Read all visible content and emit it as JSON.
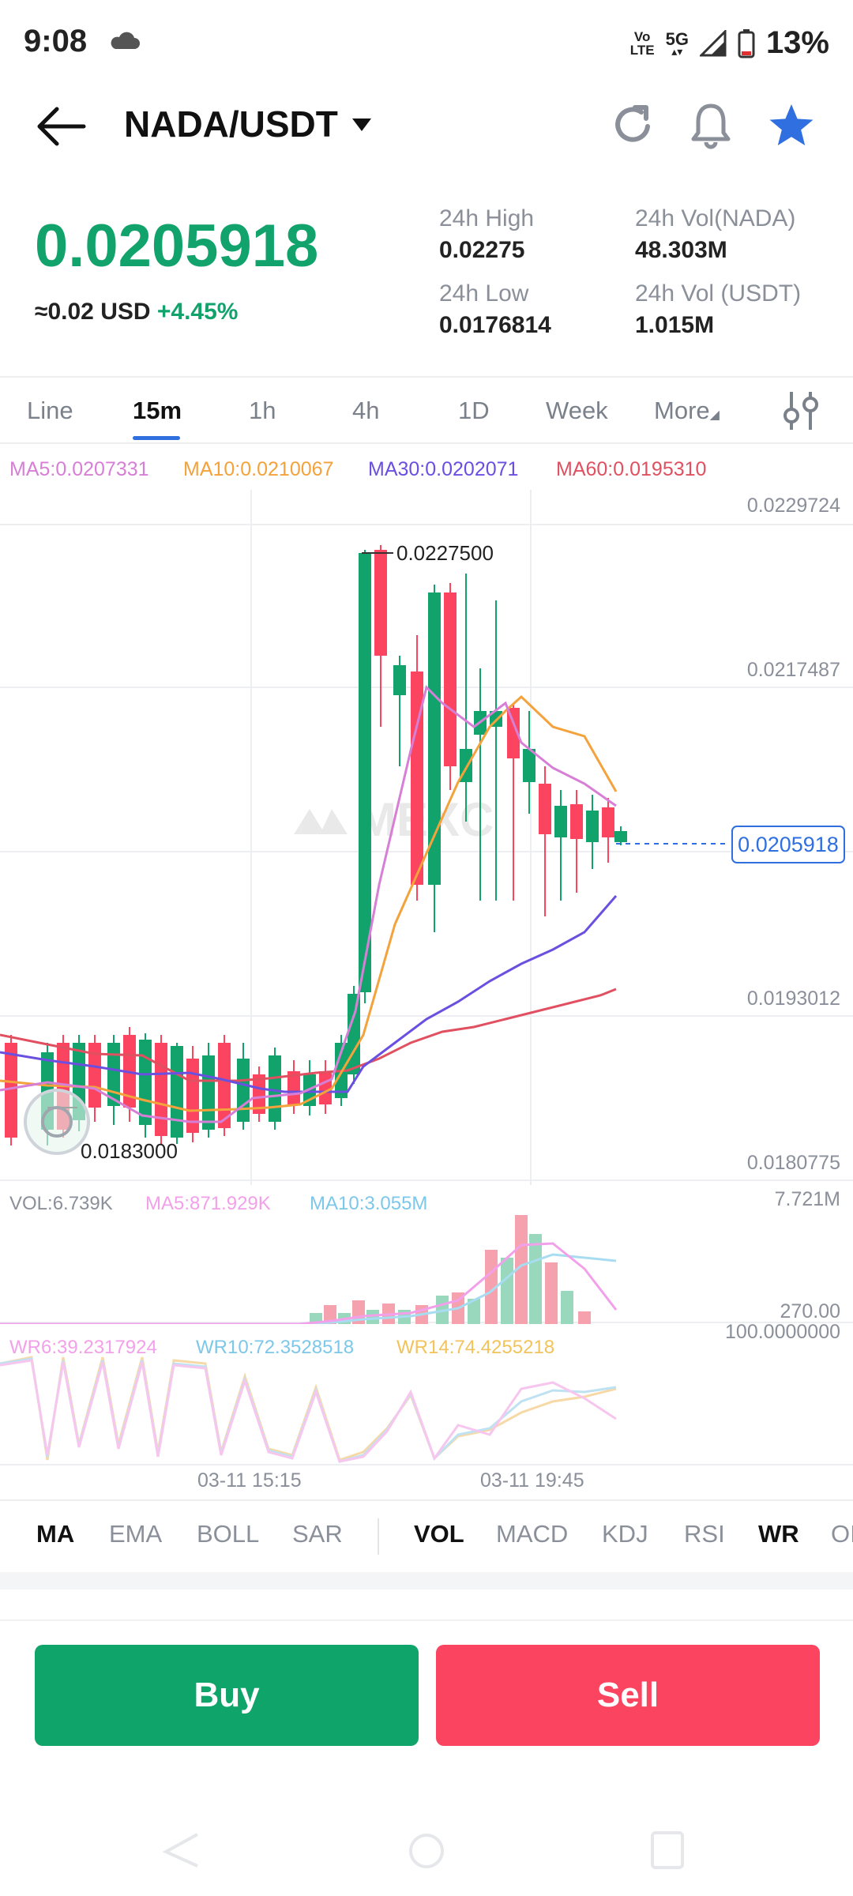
{
  "status_bar": {
    "time": "9:08",
    "volte_line1": "Vo",
    "volte_line2": "LTE",
    "network": "5G",
    "battery": "13%"
  },
  "header": {
    "pair": "NADA/USDT",
    "icons": [
      "back-arrow-icon",
      "dropdown-icon",
      "refresh-icon",
      "bell-icon",
      "star-icon"
    ]
  },
  "price": {
    "last": "0.0205918",
    "usd": "≈0.02 USD",
    "change": "+4.45%"
  },
  "stats": {
    "high_label": "24h High",
    "high_value": "0.02275",
    "low_label": "24h Low",
    "low_value": "0.0176814",
    "vol_nada_label": "24h Vol(NADA)",
    "vol_nada_value": "48.303M",
    "vol_usdt_label": "24h Vol (USDT)",
    "vol_usdt_value": "1.015M"
  },
  "tabs": [
    "Line",
    "15m",
    "1h",
    "4h",
    "1D",
    "Week",
    "More"
  ],
  "active_tab": "15m",
  "chart": {
    "ma5": "MA5:0.0207331",
    "ma10": "MA10:0.0210067",
    "ma30": "MA30:0.0202071",
    "ma60": "MA60:0.0195310",
    "axis": [
      "0.0229724",
      "0.0217487",
      "0.0193012",
      "0.0180775"
    ],
    "current_price_tag": "0.0205918",
    "high_marker": "0.0227500",
    "low_marker": "0.0183000",
    "watermark": "MEXC",
    "colors": {
      "up": "#12a36d",
      "down": "#fb4460",
      "ma5": "#d77fd6",
      "ma10": "#f4a23c",
      "ma30": "#6a4fe0",
      "ma60": "#e05060"
    }
  },
  "volume": {
    "vol": "VOL:6.739K",
    "ma5": "MA5:871.929K",
    "ma10": "MA10:3.055M",
    "top": "7.721M",
    "bottom": "270.00"
  },
  "wr": {
    "wr6": "WR6:39.2317924",
    "wr10": "WR10:72.3528518",
    "wr14": "WR14:74.4255218",
    "top": "100.0000000"
  },
  "time_axis": [
    "03-11 15:15",
    "03-11 19:45"
  ],
  "indicators_main": [
    "MA",
    "EMA",
    "BOLL",
    "SAR"
  ],
  "indicators_sub": [
    "VOL",
    "MACD",
    "KDJ",
    "RSI",
    "WR",
    "OI"
  ],
  "actions": {
    "buy": "Buy",
    "sell": "Sell"
  }
}
